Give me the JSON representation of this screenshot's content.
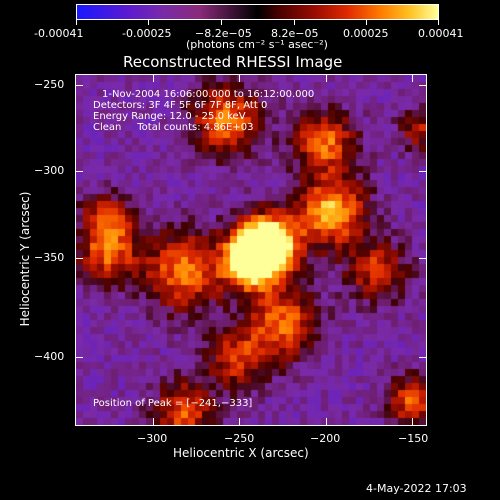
{
  "colorbar": {
    "ticks": [
      "-0.00041",
      "-0.00025",
      "−8.2e−05",
      "8.2e−05",
      "0.00025",
      "0.00041"
    ],
    "units": "(photons cm⁻² s⁻¹ asec⁻²)"
  },
  "title": "Reconstructed RHESSI Image",
  "annotations": {
    "time": "1-Nov-2004 16:06:00.000 to 16:12:00.000",
    "detectors": "Detectors: 3F 4F 5F 6F 7F 8F, Att 0",
    "energy": "Energy Range: 12.0 - 25.0 keV",
    "clean": "Clean     Total counts: 4.86E+03",
    "peak": "Position of Peak = [−241,−333]"
  },
  "axes": {
    "xlabel": "Heliocentric X (arcsec)",
    "ylabel": "Heliocentric Y (arcsec)",
    "xticks": [
      "−300",
      "−250",
      "−200",
      "−150"
    ],
    "yticks": [
      "−250",
      "−300",
      "−350",
      "−400"
    ]
  },
  "footer": {
    "timestamp": "4-May-2022 17:03"
  },
  "chart_data": {
    "type": "heatmap",
    "title": "Reconstructed RHESSI Image",
    "xlabel": "Heliocentric X (arcsec)",
    "ylabel": "Heliocentric Y (arcsec)",
    "xlim": [
      -348,
      -147
    ],
    "ylim": [
      -437,
      -237
    ],
    "zlim": [
      -0.00041,
      0.00041
    ],
    "peak": {
      "x": -241,
      "y": -333
    }
  },
  "colors": {
    "background": "#000000",
    "foreground": "#ffffff"
  }
}
